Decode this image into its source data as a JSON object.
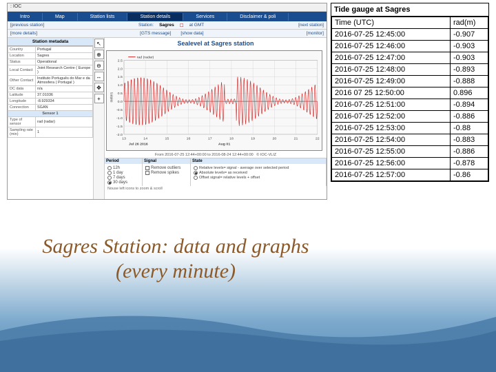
{
  "topbar": {
    "text": "IOC"
  },
  "nav": {
    "items": [
      "Intro",
      "Map",
      "Station lists",
      "Station details",
      "Services",
      "Disclaimer & poli"
    ],
    "active_idx": 3
  },
  "subnav": {
    "prev": "[previous station]",
    "station_lbl": "Station:",
    "station_val": "Sagres",
    "gmt_lbl": "at GMT",
    "next": "[next station]"
  },
  "subnav2": {
    "left": "[more details]",
    "links": [
      "[GTS message]",
      "[show data]"
    ],
    "right": "[monitor]"
  },
  "metadata": {
    "header": "Station metadata",
    "rows": [
      [
        "Country",
        "Portugal"
      ],
      [
        "Location",
        "Sagres"
      ],
      [
        "Status",
        "Operational"
      ],
      [
        "Local Contact",
        "Joint Research Centre ( Europe )"
      ],
      [
        "Other Contact",
        "Instituto Português do Mar e da Atmosfera ( Portugal )"
      ],
      [
        "DC data",
        "n/a"
      ],
      [
        "Latitude",
        "37.01036"
      ],
      [
        "Longitude",
        "-8.929334"
      ],
      [
        "Connection",
        "SGAN"
      ]
    ],
    "sensor_header": "Sensor 1",
    "sensor_rows": [
      [
        "Type of sensor",
        "rad (radar)"
      ],
      [
        "Sampling rate (min)",
        "1"
      ]
    ]
  },
  "toolbar_icons": [
    "↖",
    "⊕",
    "⊖",
    "↔",
    "✥",
    "+"
  ],
  "chart": {
    "title": "Sealevel at Sagres station",
    "legend": "rad (radar)",
    "ylabel": "meters",
    "yticks": [
      "2.5",
      "2.0",
      "1.5",
      "1.0",
      "0.5",
      "0.0",
      "-0.5",
      "-1.0",
      "-1.5",
      "-2.0"
    ],
    "xticks_top": [
      "Jul 26 2016",
      "Aug 01"
    ],
    "xticks_bot": [
      "13",
      "14",
      "15",
      "16",
      "17",
      "18",
      "19",
      "20",
      "21",
      "22"
    ],
    "footer": "From 2016-07-25 12:44+00:00 to 2016-08-24 12:44+00:00",
    "copyright": "© IOC-VLIZ",
    "series_color": "#d62020",
    "grid_color": "#d0d0d0",
    "bg_color": "#f8f8f8",
    "ylim": [
      -2.0,
      2.5
    ]
  },
  "controls": {
    "period_head": "Period",
    "signal_head": "Signal",
    "state_head": "State",
    "periods": [
      "12h",
      "1 day",
      "7 days",
      "30 days"
    ],
    "period_sel": 3,
    "signal_opts": [
      "Remove outliers",
      "Remove spikes"
    ],
    "state_opts": [
      "Relative levels= signal - average over selected period",
      "Absolute levels= as received",
      "Offset signal= relative levels + offset"
    ],
    "state_sel": 1,
    "tip": "Nouse left icons to zoom & scroll"
  },
  "datatable": {
    "title": "Tide gauge at Sagres",
    "col1": "Time (UTC)",
    "col2": "rad(m)",
    "rows": [
      [
        "2016-07-25 12:45:00",
        "-0.907"
      ],
      [
        "2016-07-25 12:46:00",
        "-0.903"
      ],
      [
        "2016-07-25 12:47:00",
        "-0.903"
      ],
      [
        "2016-07-25 12:48:00",
        "-0.893"
      ],
      [
        "2016-07-25 12:49:00",
        "-0.888"
      ],
      [
        "2016 07 25 12:50:00",
        "0.896"
      ],
      [
        "2016-07-25 12:51:00",
        "-0.894"
      ],
      [
        "2016-07-25 12:52:00",
        "-0.886"
      ],
      [
        "2016-07-25 12:53:00",
        "-0.88"
      ],
      [
        "2016-07-25 12:54:00",
        "-0.883"
      ],
      [
        "2016-07-25 12:55:00",
        "-0.886"
      ],
      [
        "2016-07-25 12:56:00",
        "-0.878"
      ],
      [
        "2016-07-25 12:57:00",
        "-0.86"
      ]
    ]
  },
  "caption": "Sagres Station: data and graphs (every minute)",
  "wave_color": "#4a7ba8"
}
